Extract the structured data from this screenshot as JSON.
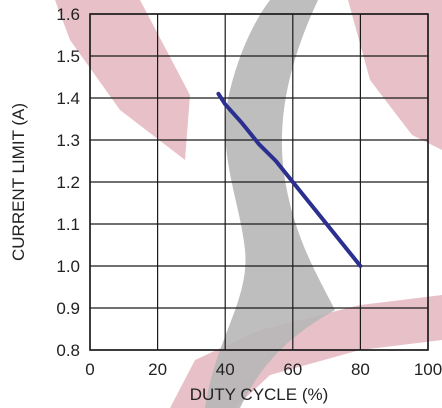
{
  "chart_data": {
    "type": "line",
    "title": "",
    "xlabel": "DUTY CYCLE (%)",
    "ylabel": "CURRENT LIMIT (A)",
    "xlim": [
      0,
      100
    ],
    "ylim": [
      0.8,
      1.6
    ],
    "x_ticks": [
      "0",
      "20",
      "40",
      "60",
      "80",
      "100"
    ],
    "y_ticks": [
      "0.8",
      "0.9",
      "1.0",
      "1.1",
      "1.2",
      "1.3",
      "1.4",
      "1.5",
      "1.6"
    ],
    "grid": true,
    "series": [
      {
        "color": "#2b2f8f",
        "x": [
          38,
          40,
          45,
          50,
          55,
          60,
          65,
          70,
          75,
          80
        ],
        "y": [
          1.41,
          1.385,
          1.34,
          1.29,
          1.25,
          1.2,
          1.15,
          1.1,
          1.05,
          1.0
        ]
      }
    ]
  }
}
